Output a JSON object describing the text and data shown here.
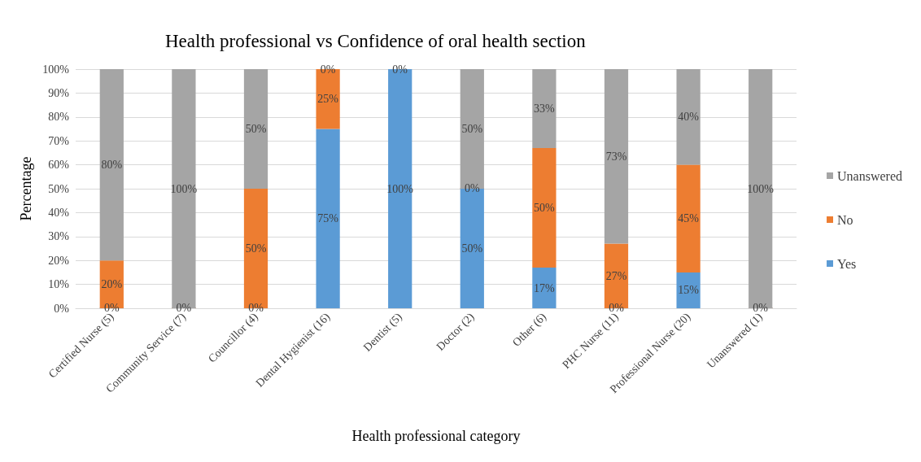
{
  "chart_data": {
    "type": "bar",
    "stacked": true,
    "title": "Health professional vs Confidence of oral health section",
    "xlabel": "Health professional category",
    "ylabel": "Percentage",
    "categories": [
      "Certified Nurse (5)",
      "Community Service (7)",
      "Councillor (4)",
      "Dental Hygienist (16)",
      "Dentist (5)",
      "Doctor (2)",
      "Other (6)",
      "PHC Nurse (11)",
      "Professional Nurse (20)",
      "Unanswered (1)"
    ],
    "series": [
      {
        "name": "Yes",
        "color": "#5b9bd5",
        "values": [
          0,
          0,
          0,
          75,
          100,
          50,
          17,
          0,
          15,
          0
        ],
        "value_labels": [
          "0%",
          "0%",
          "0%",
          "75%",
          "100%",
          "50%",
          "17%",
          "0%",
          "15%",
          "0%"
        ]
      },
      {
        "name": "No",
        "color": "#ed7d31",
        "values": [
          20,
          0,
          50,
          25,
          0,
          0,
          50,
          27,
          45,
          0
        ],
        "value_labels": [
          "20%",
          null,
          "50%",
          "25%",
          "0%",
          "0%",
          "50%",
          "27%",
          "45%",
          null
        ]
      },
      {
        "name": "Unanswered",
        "color": "#a5a5a5",
        "values": [
          80,
          100,
          50,
          0,
          0,
          50,
          33,
          73,
          40,
          100
        ],
        "value_labels": [
          "80%",
          "100%",
          "50%",
          "0%",
          null,
          "50%",
          "33%",
          "73%",
          "40%",
          "100%"
        ]
      }
    ],
    "ylim": [
      0,
      100
    ],
    "yticks": [
      {
        "value": 0,
        "label": "0%"
      },
      {
        "value": 10,
        "label": "10%"
      },
      {
        "value": 20,
        "label": "20%"
      },
      {
        "value": 30,
        "label": "30%"
      },
      {
        "value": 40,
        "label": "40%"
      },
      {
        "value": 50,
        "label": "50%"
      },
      {
        "value": 60,
        "label": "60%"
      },
      {
        "value": 70,
        "label": "70%"
      },
      {
        "value": 80,
        "label": "80%"
      },
      {
        "value": 90,
        "label": "90%"
      },
      {
        "value": 100,
        "label": "100%"
      }
    ],
    "grid": "y",
    "legend": "right"
  }
}
